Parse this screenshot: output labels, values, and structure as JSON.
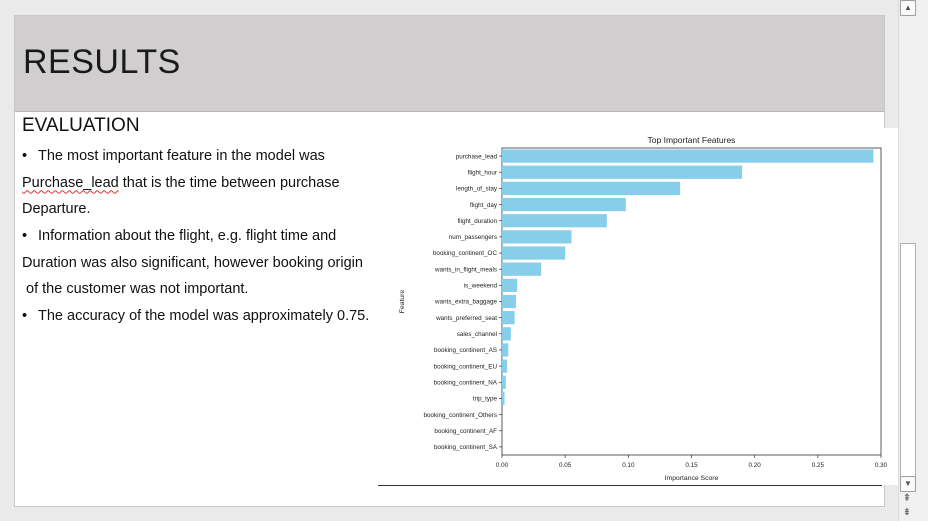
{
  "slide": {
    "title": "RESULTS",
    "subtitle": "EVALUATION",
    "bullet_char": "•",
    "lines": [
      {
        "prefix": "The most important feature in the model was"
      },
      {
        "squiggle": "Purchase_lead",
        "rest": " that is the time between purchase"
      },
      {
        "text": "Departure."
      },
      {
        "prefix": "Information about the flight, e.g. flight time and"
      },
      {
        "text": "Duration was also significant, however booking origin"
      },
      {
        "text": " of the customer was not important."
      },
      {
        "prefix": "The accuracy of the model was approximately 0.75."
      }
    ]
  },
  "chart_data": {
    "type": "bar",
    "orientation": "horizontal",
    "title": "Top Important Features",
    "xlabel": "Importance Score",
    "ylabel": "Feature",
    "xlim": [
      0,
      0.3
    ],
    "xticks": [
      "0.00",
      "0.05",
      "0.10",
      "0.15",
      "0.20",
      "0.25",
      "0.30"
    ],
    "bar_color": "#87ceeb",
    "categories": [
      "purchase_lead",
      "flight_hour",
      "length_of_stay",
      "flight_day",
      "flight_duration",
      "num_passengers",
      "booking_continent_OC",
      "wants_in_flight_meals",
      "is_weekend",
      "wants_extra_baggage",
      "wants_preferred_seat",
      "sales_channel",
      "booking_continent_AS",
      "booking_continent_EU",
      "booking_continent_NA",
      "trip_type",
      "booking_continent_Others",
      "booking_continent_AF",
      "booking_continent_SA"
    ],
    "values": [
      0.294,
      0.19,
      0.141,
      0.098,
      0.083,
      0.055,
      0.05,
      0.031,
      0.012,
      0.011,
      0.01,
      0.007,
      0.005,
      0.004,
      0.003,
      0.002,
      0.0,
      0.0,
      0.0
    ]
  },
  "scrollbar": {
    "up_icon": "▲",
    "down_icon": "▼",
    "prev_icon": "⇞",
    "next_icon": "⇟"
  }
}
